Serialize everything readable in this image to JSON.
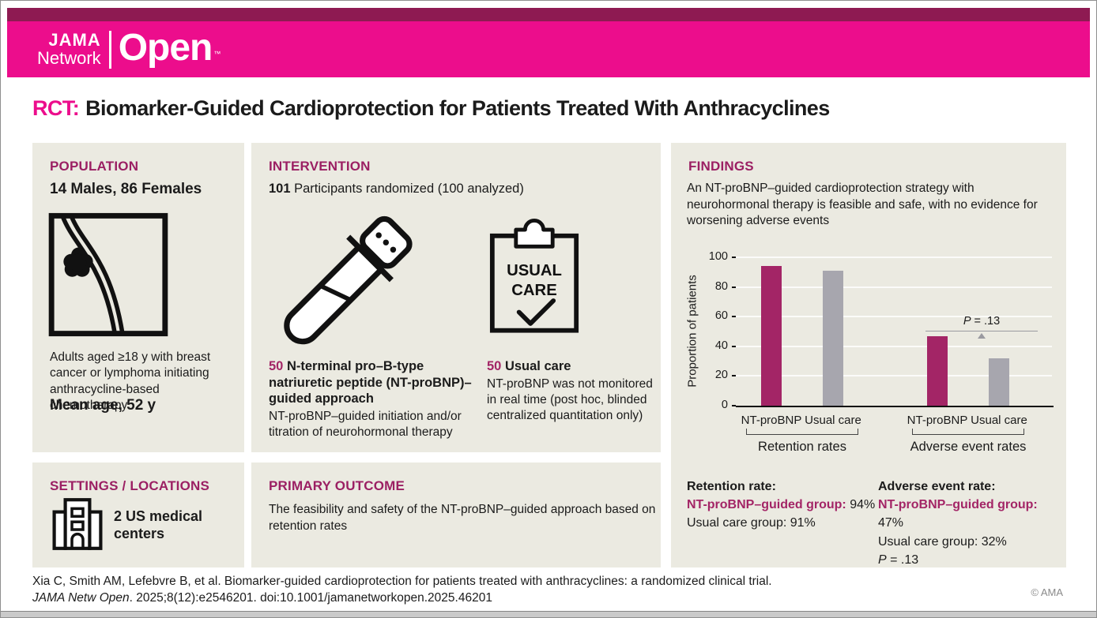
{
  "colors": {
    "brand_pink": "#EC0D8C",
    "accent_dark": "#8E1A52",
    "heading_magenta": "#9B1F63",
    "stat_magenta": "#A32566",
    "bar_gray": "#A7A6AE",
    "panel_bg": "#EBEAE1"
  },
  "header": {
    "jama": "JAMA",
    "network": "Network",
    "open": "Open",
    "tm": "™"
  },
  "title": {
    "prefix": "RCT:",
    "main": "Biomarker-Guided Cardioprotection for Patients Treated With Anthracyclines"
  },
  "population": {
    "heading": "POPULATION",
    "subtitle": "14 Males, 86 Females",
    "icon": "breast-tumor-icon",
    "description": "Adults aged ≥18 y with breast cancer or lymphoma initiating anthracycline-based chemotherapy",
    "mean_age": "Mean age, 52 y"
  },
  "intervention": {
    "heading": "INTERVENTION",
    "count": "101",
    "count_rest": " Participants randomized (100 analyzed)",
    "arms": [
      {
        "n": "50",
        "title": " N-terminal pro–B-type natriuretic peptide (NT-proBNP)–guided approach",
        "description": "NT-proBNP–guided initiation and/or titration of neurohormonal therapy",
        "icon": "test-tube-icon"
      },
      {
        "n": "50",
        "title": " Usual care",
        "description": "NT-proBNP was not monitored in real time (post hoc, blinded centralized quantitation only)",
        "icon": "clipboard-icon",
        "icon_text_line1": "USUAL",
        "icon_text_line2": "CARE"
      }
    ]
  },
  "settings": {
    "heading": "SETTINGS / LOCATIONS",
    "icon": "hospital-icon",
    "text": "2 US medical centers"
  },
  "primary_outcome": {
    "heading": "PRIMARY OUTCOME",
    "text": "The feasibility and safety of the NT-proBNP–guided approach based on retention rates"
  },
  "findings": {
    "heading": "FINDINGS",
    "summary": "An NT-proBNP–guided cardioprotection strategy with neurohormonal therapy is feasible and safe, with no evidence for worsening adverse events",
    "stats": [
      {
        "heading": "Retention rate:",
        "group1_label": "NT-proBNP–guided group:",
        "group1_value": " 94%",
        "group2": "Usual care group: 91%"
      },
      {
        "heading": "Adverse event rate:",
        "group1_label": "NT-proBNP–guided group:",
        "group1_value": " 47%",
        "group2": "Usual care group: 32%",
        "p_label": "P",
        "p_rest": " = .13"
      }
    ]
  },
  "chart_data": {
    "type": "bar",
    "ylabel": "Proportion of patients",
    "ylim": [
      0,
      100
    ],
    "yticks": [
      0,
      20,
      40,
      60,
      80,
      100
    ],
    "groups": [
      {
        "label": "Retention rates",
        "bars": [
          {
            "label": "NT-proBNP",
            "value": 94,
            "color": "#A32566"
          },
          {
            "label": "Usual care",
            "value": 91,
            "color": "#A7A6AE"
          }
        ]
      },
      {
        "label": "Adverse event rates",
        "bars": [
          {
            "label": "NT-proBNP",
            "value": 47,
            "color": "#A32566"
          },
          {
            "label": "Usual care",
            "value": 32,
            "color": "#A7A6AE"
          }
        ]
      }
    ],
    "annotation": {
      "p_label": "P",
      "p_rest": " = .13",
      "at_value": 50
    }
  },
  "footer": {
    "citation_line1": "Xia C, Smith AM, Lefebvre B, et al. Biomarker-guided cardioprotection for patients treated with anthracyclines: a randomized clinical trial.",
    "citation_journal": "JAMA Netw Open",
    "citation_line2_rest": ". 2025;8(12):e2546201. doi:10.1001/jamanetworkopen.2025.46201",
    "copyright": "© AMA"
  }
}
